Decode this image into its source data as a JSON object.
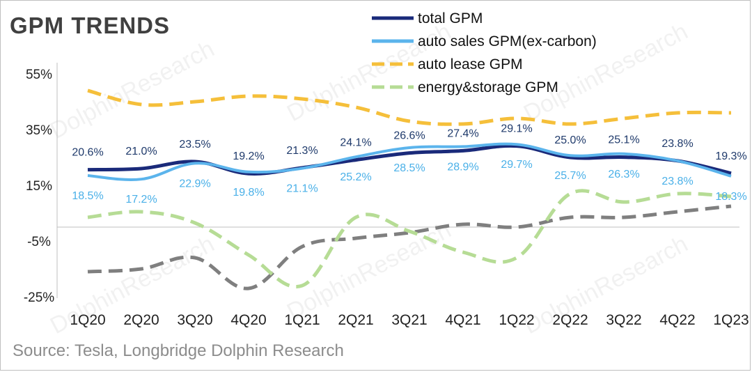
{
  "title": "GPM TRENDS",
  "source": "Source: Tesla, Longbridge Dolphin Research",
  "colors": {
    "total": "#1a2a7a",
    "auto_sales": "#5bb4ec",
    "auto_lease": "#f5bf3a",
    "energy": "#b6dc95",
    "gray": "#7f7f7f"
  },
  "chart_data": {
    "type": "line",
    "categories": [
      "1Q20",
      "2Q20",
      "3Q20",
      "4Q20",
      "1Q21",
      "2Q21",
      "3Q21",
      "4Q21",
      "1Q22",
      "2Q22",
      "3Q22",
      "4Q22",
      "1Q23"
    ],
    "ylim": [
      -25,
      55
    ],
    "yticks": [
      "55%",
      "35%",
      "15%",
      "-5%",
      "-25%"
    ],
    "grid": false,
    "legend_position": "top-right",
    "series": [
      {
        "key": "total",
        "name": "total GPM",
        "style": "solid",
        "values": [
          20.6,
          21.0,
          23.5,
          19.2,
          21.3,
          24.1,
          26.6,
          27.4,
          29.1,
          25.0,
          25.1,
          23.8,
          19.3
        ],
        "labels": [
          "20.6%",
          "21.0%",
          "23.5%",
          "19.2%",
          "21.3%",
          "24.1%",
          "26.6%",
          "27.4%",
          "29.1%",
          "25.0%",
          "25.1%",
          "23.8%",
          "19.3%"
        ]
      },
      {
        "key": "auto_sales",
        "name": "auto sales GPM(ex-carbon)",
        "style": "solid",
        "values": [
          18.5,
          17.2,
          22.9,
          19.8,
          21.1,
          25.2,
          28.5,
          28.9,
          29.7,
          25.7,
          26.3,
          23.8,
          18.3
        ],
        "labels": [
          "18.5%",
          "17.2%",
          "22.9%",
          "19.8%",
          "21.1%",
          "25.2%",
          "28.5%",
          "28.9%",
          "29.7%",
          "25.7%",
          "26.3%",
          "23.8%",
          "18.3%"
        ]
      },
      {
        "key": "auto_lease",
        "name": "auto lease GPM",
        "style": "dashed",
        "values": [
          49,
          44,
          45,
          47,
          46,
          43,
          38,
          37,
          39,
          37,
          39,
          41,
          41
        ]
      },
      {
        "key": "energy",
        "name": "energy&storage GPM",
        "style": "dashed",
        "values": [
          3.5,
          5.5,
          1.5,
          -10,
          -21,
          3.5,
          -1.5,
          -9,
          -11,
          12,
          9,
          12,
          11
        ]
      },
      {
        "key": "gray",
        "style": "dashed",
        "values": [
          -16,
          -15,
          -11,
          -22,
          -7,
          -4,
          -2,
          1,
          0,
          3.5,
          3.5,
          5.5,
          7.5
        ]
      }
    ]
  }
}
